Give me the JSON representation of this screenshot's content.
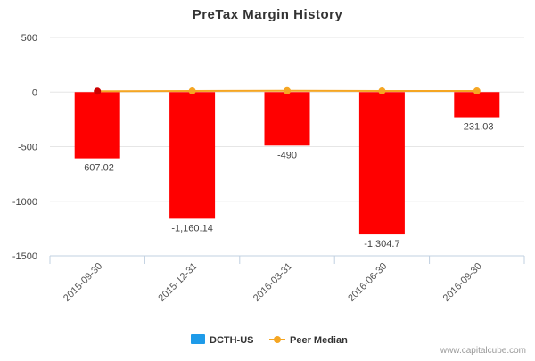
{
  "chart_data": {
    "type": "bar",
    "title": "PreTax Margin History",
    "categories": [
      "2015-09-30",
      "2015-12-31",
      "2016-03-31",
      "2016-06-30",
      "2016-09-30"
    ],
    "series": [
      {
        "name": "DCTH-US",
        "type": "bar",
        "values": [
          -607.02,
          -1160.14,
          -490,
          -1304.7,
          -231.03
        ],
        "color": "#ff0000",
        "legend_color": "#1e9be9"
      },
      {
        "name": "Peer Median",
        "type": "line",
        "values": [
          8,
          10,
          12,
          10,
          10
        ],
        "color": "#f5a623"
      }
    ],
    "data_labels": [
      "-607.02",
      "-1,160.14",
      "-490",
      "-1,304.7",
      "-231.03"
    ],
    "y_ticks": [
      500,
      0,
      -500,
      -1000,
      -1500
    ],
    "y_tick_labels": [
      "500",
      "0",
      "-500",
      "-1000",
      "-1500"
    ],
    "ylim": [
      -1500,
      500
    ],
    "first_point_color": "#cc0000",
    "legend_position": "bottom-center",
    "xlabel": "",
    "ylabel": ""
  },
  "credit": "www.capitalcube.com"
}
